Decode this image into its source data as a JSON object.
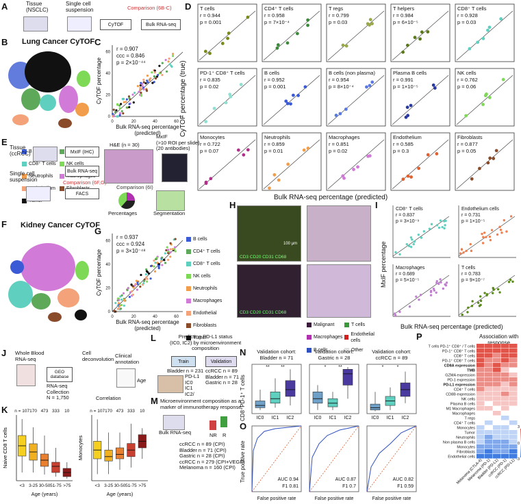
{
  "labels": {
    "A": "A",
    "B": "B",
    "C": "C",
    "D": "D",
    "E": "E",
    "F": "F",
    "G": "G",
    "H": "H",
    "I": "I",
    "J": "J",
    "K": "K",
    "L": "L",
    "M": "M",
    "N": "N",
    "O": "O",
    "P": "P"
  },
  "panelA": {
    "tissue": "Tissue\n(NSCLC)",
    "single": "Single cell\nsuspension",
    "cytof": "CyTOF",
    "bulk": "Bulk RNA-seq",
    "comparison": "Comparison (6B-C)"
  },
  "panelB": {
    "title": "Lung Cancer CyTOF",
    "legend": [
      {
        "label": "B cells",
        "color": "#3b5bd6"
      },
      {
        "label": "CD4⁺ T cells",
        "color": "#5ea85a"
      },
      {
        "label": "CD8⁺ T cells",
        "color": "#5fd0c0"
      },
      {
        "label": "NK cells",
        "color": "#7ed957"
      },
      {
        "label": "Neutrophils",
        "color": "#f29d4b"
      },
      {
        "label": "Macrophages",
        "color": "#d27ad8"
      },
      {
        "label": "Endothelium",
        "color": "#f4a27a"
      },
      {
        "label": "Fibroblasts",
        "color": "#8a4b2a"
      },
      {
        "label": "Tumor",
        "color": "#111111"
      }
    ]
  },
  "panelC": {
    "r": "r = 0.907",
    "ccc": "ccc = 0.846",
    "p": "p = 2×10⁻⁴⁴",
    "ylabel": "CyTOF percentage",
    "xlabel": "Bulk RNA-seq percentage\n(predicted)"
  },
  "panelD": {
    "ylabel": "CyTOF percentage (true)",
    "xlabel": "Bulk RNA-seq percentage (predicted)",
    "cells": [
      {
        "name": "T cells",
        "r": "r = 0.944",
        "p": "p = 0.001",
        "color": "#7a8a1a"
      },
      {
        "name": "CD4⁺ T cells",
        "r": "r = 0.958",
        "p": "p = 7×10⁻⁴",
        "color": "#3a8a3a"
      },
      {
        "name": "T regs",
        "r": "r = 0.799",
        "p": "p = 0.03",
        "color": "#9aa84a"
      },
      {
        "name": "T helpers",
        "r": "r = 0.984",
        "p": "p = 6×10⁻⁵",
        "color": "#5a7a1a"
      },
      {
        "name": "CD8⁺ T cells",
        "r": "r = 0.928",
        "p": "p = 0.03",
        "color": "#5fd0c0"
      },
      {
        "name": "PD-1⁺ CD8⁺ T cells",
        "r": "r = 0.835",
        "p": "p = 0.02",
        "color": "#8fe0d0"
      },
      {
        "name": "B cells",
        "r": "r = 0.952",
        "p": "p = 0.001",
        "color": "#3b5bd6"
      },
      {
        "name": "B cells (non plasma)",
        "r": "r = 0.954",
        "p": "p = 8×10⁻⁴",
        "color": "#5a7ae0"
      },
      {
        "name": "Plasma B cells",
        "r": "r = 0.991",
        "p": "p = 1×10⁻⁵",
        "color": "#2a3aa0"
      },
      {
        "name": "NK cells",
        "r": "r = 0.762",
        "p": "p = 0.06",
        "color": "#7ed957"
      },
      {
        "name": "Monocytes",
        "r": "r = 0.722",
        "p": "p = 0.07",
        "color": "#b0308a"
      },
      {
        "name": "Neutrophils",
        "r": "r = 0.859",
        "p": "p = 0.01",
        "color": "#f29d4b"
      },
      {
        "name": "Macrophages",
        "r": "r = 0.851",
        "p": "p = 0.02",
        "color": "#d27ad8"
      },
      {
        "name": "Endothelium",
        "r": "r = 0.585",
        "p": "p = 0.3",
        "color": "#e06030"
      },
      {
        "name": "Fibroblasts",
        "r": "r = 0.877",
        "p": "p = 0.05",
        "color": "#8a4b2a"
      }
    ]
  },
  "panelE": {
    "tissue": "Tissue\n(ccRCC)",
    "single": "Single cell\nsuspension",
    "mxif": "MxIF (IHC)",
    "bulk": "Bulk RNA-seq",
    "facs": "FACS",
    "he": "H&E (n = 30)",
    "mxif2": "MxIF\n(>10 ROI per slide)\n(20 antibodies)",
    "comp1": "Comparison (6F,G)",
    "comp2": "Comparison (6I)",
    "pct": "Percentages",
    "seg": "Segmentation"
  },
  "panelF": {
    "title": "Kidney Cancer CyTOF"
  },
  "panelG": {
    "r": "r = 0.937",
    "ccc": "ccc = 0.924",
    "p": "p = 3×10⁻⁴⁸",
    "ylabel": "CyTOF percentage",
    "xlabel": "Bulk RNA-seq percentage\n(predicted)",
    "legend": [
      {
        "label": "B cells",
        "color": "#3b5bd6"
      },
      {
        "label": "CD4⁺ T cells",
        "color": "#5ea85a"
      },
      {
        "label": "CD8⁺ T cells",
        "color": "#5fd0c0"
      },
      {
        "label": "NK cells",
        "color": "#7ed957"
      },
      {
        "label": "Neutrophils",
        "color": "#f29d4b"
      },
      {
        "label": "Macrophages",
        "color": "#d27ad8"
      },
      {
        "label": "Endothelial",
        "color": "#f4a27a"
      },
      {
        "label": "Fibroblasts",
        "color": "#8a4b2a"
      },
      {
        "label": "Tumor",
        "color": "#111111"
      }
    ]
  },
  "panelH": {
    "markers1": "CD3 CD20 CD31 CD68",
    "markers2": "CD3 CD20 CD31 CD68",
    "scale": "100 μm",
    "legend": [
      {
        "label": "Malignant",
        "color": "#3a1a3a"
      },
      {
        "label": "T cells",
        "color": "#3a9a3a"
      },
      {
        "label": "Macrophages",
        "color": "#b030b0"
      },
      {
        "label": "Endothelial cells",
        "color": "#d02020"
      },
      {
        "label": "B cells",
        "color": "#3050c0"
      },
      {
        "label": "Other",
        "color": "#e0e0e0"
      }
    ]
  },
  "panelI": {
    "ylabel": "MxIF percentage",
    "xlabel": "Bulk RNA-seq percentage (predicted)",
    "cells": [
      {
        "name": "CD8⁺ T cells",
        "r": "r = 0.837",
        "p": "p = 3×10⁻⁹",
        "color": "#5fd0c0"
      },
      {
        "name": "Endothelium cells",
        "r": "r = 0.731",
        "p": "p = 1×10⁻⁵",
        "color": "#f08050"
      },
      {
        "name": "Macrophages",
        "r": "r = 0.689",
        "p": "p = 5×10⁻⁵",
        "color": "#c080d0"
      },
      {
        "name": "T cells",
        "r": "r = 0.783",
        "p": "p = 9×10⁻⁷",
        "color": "#5a8a1a"
      }
    ]
  },
  "panelJ": {
    "blood": "Whole Blood\nRNA-seq",
    "geo": "GEO\ndatabase",
    "collection": "RNA-seq\nCollection\nN = 1,750",
    "decon": "Cell\ndeconvolution",
    "clinical": "Clinical\nannotation",
    "age": "Age",
    "corr": "Correlation"
  },
  "panelK": {
    "n": [
      "n = 107",
      "170",
      "473",
      "333",
      "10"
    ],
    "ages": [
      "<3",
      "3-25",
      "30-50",
      "51-75",
      ">75"
    ],
    "xlabel": "Age (years)",
    "ylabel1": "Naive CD8 T cells",
    "ylabel2": "Monocytes",
    "colors": [
      "#f5d020",
      "#f0b020",
      "#e88030",
      "#c84030",
      "#8a1a1a"
    ],
    "naive": [
      [
        4,
        12,
        17,
        22,
        30
      ],
      [
        4,
        10,
        14,
        18,
        26
      ],
      [
        3,
        7,
        10,
        13,
        22
      ],
      [
        2,
        4,
        7,
        9,
        16
      ],
      [
        1,
        2,
        4,
        6,
        9
      ]
    ],
    "mono": [
      [
        3,
        10,
        14,
        18,
        28
      ],
      [
        3,
        9,
        11,
        14,
        22
      ],
      [
        5,
        10,
        12,
        15,
        22
      ],
      [
        6,
        11,
        14,
        17,
        26
      ],
      [
        10,
        15,
        18,
        21,
        24
      ]
    ]
  },
  "panelL": {
    "title": "Predicting PD-L1 status\n(IC0, IC2) by microenvironment\ncomposition",
    "train": "Train",
    "validation": "Validation",
    "bladder": "Bladder n = 231",
    "pdl1": "PD-L1\nIC0\nIC1\nIC2/",
    "vcounts": "ccRCC n = 89\nBladder n = 71\nGastric n = 28"
  },
  "panelM": {
    "title": "Microenvironment composition as a\nmarker of immunotherapy response",
    "bulk": "Bulk RNA-seq",
    "nr": "NR",
    "r": "R",
    "cohorts": "ccRCC n = 89 (CPI)\nBladder n = 71 (CPI)\nGastric n = 28 (CPI)\nccRCC n = 279 (CPI+VEGF)\nMelanoma n = 160 (CPI)"
  },
  "panelN": {
    "ylabel": "CD8⁺PD-1⁺ T cells",
    "groups": [
      "IC0",
      "IC1",
      "IC2"
    ],
    "cohorts": [
      {
        "title": "Validation cohort:\nBladder n = 71",
        "sig": [
          "**",
          "**"
        ],
        "colors": [
          "#6fa0c8",
          "#5fd0c0",
          "#4a3aa0"
        ],
        "box": [
          [
            0.05,
            0.1,
            0.15,
            0.25,
            0.5
          ],
          [
            0.1,
            0.2,
            0.3,
            0.45,
            0.75
          ],
          [
            0.15,
            0.35,
            0.5,
            0.7,
            0.95
          ]
        ]
      },
      {
        "title": "Validation cohort:\nGastric n = 28",
        "sig": [
          "*",
          "**"
        ],
        "colors": [
          "#6fa0c8",
          "#5fd0c0",
          "#4a3aa0"
        ],
        "box": [
          [
            0.05,
            0.2,
            0.3,
            0.45,
            0.6
          ],
          [
            0.05,
            0.12,
            0.2,
            0.3,
            0.45
          ],
          [
            0.3,
            0.6,
            0.85,
            0.95,
            1.0
          ]
        ]
      },
      {
        "title": "Validation cohort:\nccRCC n = 89",
        "sig": [
          "*",
          "*"
        ],
        "colors": [
          "#6fa0c8",
          "#5fd0c0",
          "#4a3aa0"
        ],
        "box": [
          [
            0.02,
            0.05,
            0.1,
            0.18,
            0.45
          ],
          [
            0.05,
            0.15,
            0.25,
            0.35,
            0.55
          ],
          [
            0.2,
            0.35,
            0.5,
            0.65,
            0.9
          ]
        ]
      }
    ]
  },
  "panelO": {
    "ylabel": "True positive rate",
    "xlabel": "False positive rate",
    "rocs": [
      {
        "auc": "AUC 0.94",
        "f1": "F1 0.81"
      },
      {
        "auc": "AUC 0.87",
        "f1": "F1 0.7"
      },
      {
        "auc": "AUC 0.82",
        "f1": "F1 0.59"
      }
    ]
  },
  "panelP": {
    "title": "Association with\nresponse",
    "legend_title": "Fold Change",
    "scale": [
      "3",
      "0",
      "-3"
    ],
    "columns": [
      "Melanoma (CTLA-4)",
      "Melanoma (PD-1)",
      "Bladder (PD-L1)",
      "ccRCC (PD-1)",
      "ccRCC (PD-L1)"
    ],
    "rows": [
      "T cells PD-1⁺ CD8⁺ / T cells",
      "PD-1⁺ CD8⁺ T cells",
      "CD8⁺ T cells",
      "PD-1⁺ CD8⁺ T cells",
      "CD8A expression",
      "TMB",
      "GZMA expression",
      "PD-1 expression",
      "PD-L1 expression",
      "CD4⁺ T cells",
      "CD8B expression",
      "NK cells",
      "Plasma B cells",
      "M1 Macrophages",
      "Macrophages",
      "T regs",
      "CD4⁺ T cells",
      "Monocytes",
      "Tumor",
      "Neutrophils",
      "Non plasma B cells",
      "Monocytes",
      "Fibroblasts",
      "Endothelial cells"
    ],
    "bold": [
      4,
      5,
      8
    ],
    "values": [
      [
        3,
        3,
        3,
        3,
        3
      ],
      [
        3,
        3,
        3,
        3,
        3
      ],
      [
        3,
        3,
        2,
        3,
        3
      ],
      [
        3,
        2,
        2,
        3,
        2
      ],
      [
        3,
        2,
        3,
        2,
        2
      ],
      [
        2,
        2,
        3,
        1,
        0
      ],
      [
        2,
        2,
        2,
        2,
        1
      ],
      [
        2,
        2,
        2,
        2,
        2
      ],
      [
        2,
        2,
        2,
        1,
        2
      ],
      [
        2,
        1,
        1,
        1,
        1
      ],
      [
        1,
        1,
        1,
        2,
        1
      ],
      [
        1,
        1,
        1,
        1,
        1
      ],
      [
        1,
        0,
        1,
        1,
        1
      ],
      [
        1,
        1,
        0,
        1,
        0
      ],
      [
        0,
        0,
        1,
        0,
        0
      ],
      [
        0,
        0,
        0,
        -1,
        0
      ],
      [
        0,
        -1,
        0,
        0,
        -1
      ],
      [
        -1,
        0,
        -1,
        -1,
        0
      ],
      [
        -1,
        -1,
        -1,
        -1,
        -1
      ],
      [
        -1,
        -2,
        -1,
        -1,
        -1
      ],
      [
        -1,
        -2,
        -2,
        -2,
        -1
      ],
      [
        -2,
        -2,
        -2,
        -2,
        -2
      ],
      [
        -2,
        -3,
        -2,
        -2,
        -3
      ],
      [
        -3,
        -3,
        -3,
        -3,
        -3
      ]
    ]
  }
}
